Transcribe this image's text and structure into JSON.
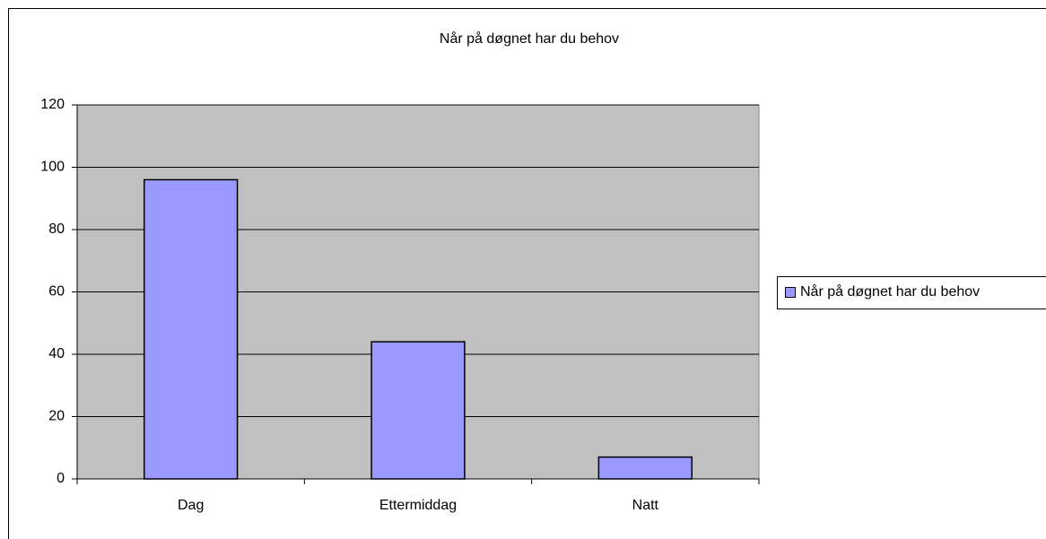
{
  "chart_data": {
    "type": "bar",
    "title": "Når på døgnet har du behov",
    "categories": [
      "Dag",
      "Ettermiddag",
      "Natt"
    ],
    "series": [
      {
        "name": "Når på døgnet har du behov",
        "color": "#9999ff",
        "values": [
          96,
          44,
          7
        ]
      }
    ],
    "ylim": [
      0,
      120
    ],
    "yticks": [
      0,
      20,
      40,
      60,
      80,
      100,
      120
    ],
    "grid": true,
    "legend": "right"
  }
}
